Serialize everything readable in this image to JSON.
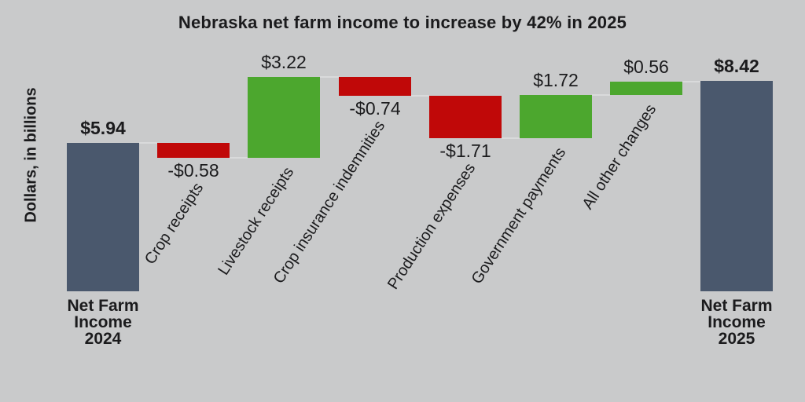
{
  "title": "Nebraska net farm income to increase by 42% in 2025",
  "y_axis_label": "Dollars, in billions",
  "colors": {
    "background": "#c9cacb",
    "total_bar": "#4a586d",
    "increase_bar": "#4ca72e",
    "decrease_bar": "#c00808",
    "connector": "#d9dadb",
    "text": "#1b1b1d"
  },
  "chart_data": {
    "type": "bar",
    "subtype": "waterfall",
    "title": "Nebraska net farm income to increase by 42% in 2025",
    "xlabel": "",
    "ylabel": "Dollars, in billions",
    "units": "billions of US dollars",
    "ylim": [
      0,
      9
    ],
    "grid": false,
    "legend": "none",
    "categories": [
      "Net Farm Income 2024",
      "Crop receipts",
      "Livestock receipts",
      "Crop insurance indemnities",
      "Production expenses",
      "Government payments",
      "All other changes",
      "Net Farm Income 2025"
    ],
    "items": [
      {
        "label": "Net Farm Income 2024",
        "label_lines": [
          "Net Farm",
          "Income",
          "2024"
        ],
        "value": 5.94,
        "value_display": "$5.94",
        "kind": "total",
        "value_label_position": "above",
        "start": 0,
        "end": 5.94
      },
      {
        "label": "Crop receipts",
        "value": -0.58,
        "value_display": "-$0.58",
        "kind": "decrease",
        "value_label_position": "below",
        "start": 5.94,
        "end": 5.36
      },
      {
        "label": "Livestock receipts",
        "value": 3.22,
        "value_display": "$3.22",
        "kind": "increase",
        "value_label_position": "above",
        "start": 5.36,
        "end": 8.58
      },
      {
        "label": "Crop insurance indemnities",
        "value": -0.74,
        "value_display": "-$0.74",
        "kind": "decrease",
        "value_label_position": "below",
        "start": 8.58,
        "end": 7.84
      },
      {
        "label": "Production expenses",
        "value": -1.71,
        "value_display": "-$1.71",
        "kind": "decrease",
        "value_label_position": "below",
        "start": 7.84,
        "end": 6.13
      },
      {
        "label": "Government payments",
        "value": 1.72,
        "value_display": "$1.72",
        "kind": "increase",
        "value_label_position": "above",
        "start": 6.13,
        "end": 7.85
      },
      {
        "label": "All other changes",
        "value": 0.56,
        "value_display": "$0.56",
        "kind": "increase",
        "value_label_position": "above",
        "start": 7.85,
        "end": 8.41
      },
      {
        "label": "Net Farm Income 2025",
        "label_lines": [
          "Net Farm",
          "Income",
          "2025"
        ],
        "value": 8.42,
        "value_display": "$8.42",
        "kind": "total",
        "value_label_position": "above",
        "start": 0,
        "end": 8.42
      }
    ]
  }
}
